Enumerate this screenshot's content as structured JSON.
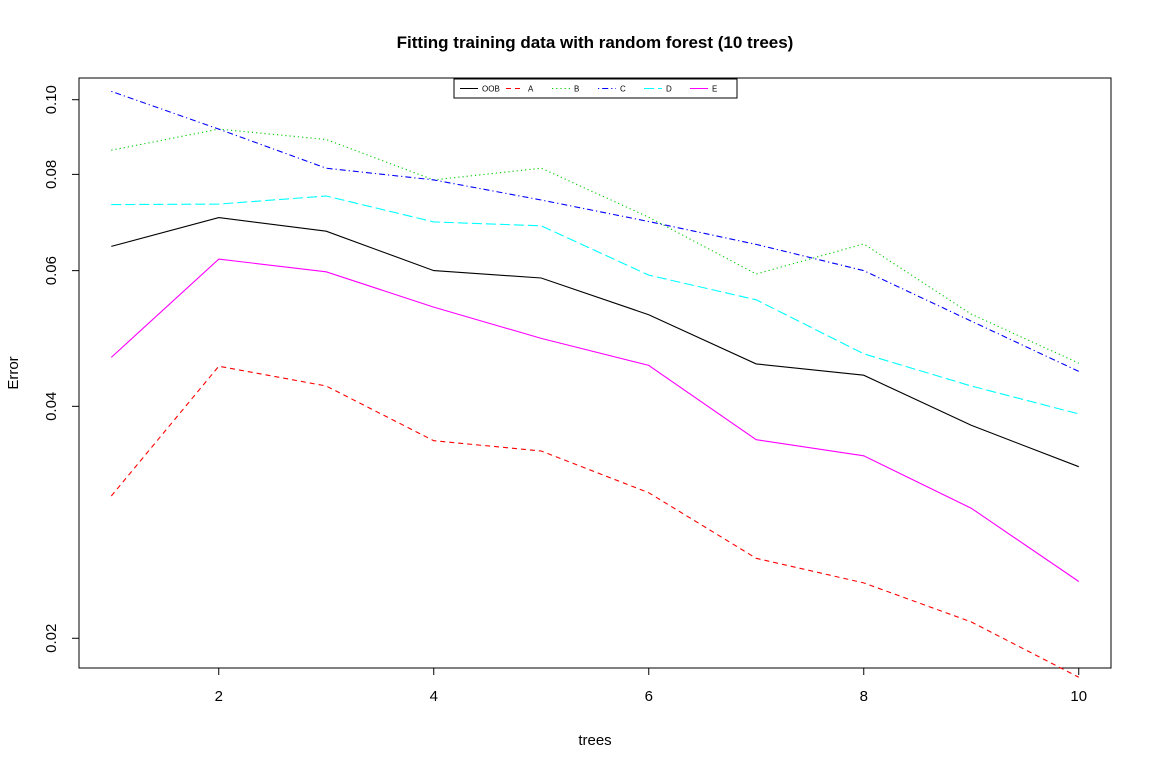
{
  "chart_data": {
    "type": "line",
    "title": "Fitting training data with random forest (10 trees)",
    "xlabel": "trees",
    "ylabel": "Error",
    "x": [
      1,
      2,
      3,
      4,
      5,
      6,
      7,
      8,
      9,
      10
    ],
    "xlim": [
      0.7,
      10.3
    ],
    "ylim": [
      0.0183,
      0.1067
    ],
    "y_scale": "log",
    "x_ticks": [
      2,
      4,
      6,
      8,
      10
    ],
    "y_ticks": [
      0.02,
      0.04,
      0.06,
      0.08,
      0.1
    ],
    "x_tick_labels": [
      "2",
      "4",
      "6",
      "8",
      "10"
    ],
    "y_tick_labels": [
      "0.02",
      "0.04",
      "0.06",
      "0.08",
      "0.10"
    ],
    "grid": false,
    "legend_position": "top-center",
    "series": [
      {
        "name": "OOB",
        "color": "#000000",
        "dash": "solid",
        "values": [
          0.0645,
          0.0703,
          0.0675,
          0.06,
          0.0587,
          0.0526,
          0.0454,
          0.0439,
          0.0378,
          0.0334
        ]
      },
      {
        "name": "A",
        "color": "#ff0000",
        "dash": "dashed",
        "values": [
          0.0306,
          0.0451,
          0.0425,
          0.0361,
          0.035,
          0.0309,
          0.0254,
          0.0236,
          0.021,
          0.0178
        ]
      },
      {
        "name": "B",
        "color": "#00cd00",
        "dash": "dotted",
        "values": [
          0.086,
          0.0916,
          0.0888,
          0.0787,
          0.0815,
          0.0704,
          0.0594,
          0.065,
          0.0527,
          0.0455
        ]
      },
      {
        "name": "C",
        "color": "#0000ff",
        "dash": "dotdash",
        "values": [
          0.1025,
          0.0916,
          0.0815,
          0.0787,
          0.0741,
          0.0695,
          0.0649,
          0.06,
          0.0516,
          0.0444
        ]
      },
      {
        "name": "D",
        "color": "#00ffff",
        "dash": "longdash",
        "values": [
          0.0731,
          0.0732,
          0.075,
          0.0694,
          0.0686,
          0.0592,
          0.055,
          0.0468,
          0.0425,
          0.0391
        ]
      },
      {
        "name": "E",
        "color": "#ff00ff",
        "dash": "solid",
        "values": [
          0.0463,
          0.0621,
          0.0598,
          0.0538,
          0.049,
          0.0452,
          0.0362,
          0.0345,
          0.0295,
          0.0237
        ]
      }
    ]
  }
}
